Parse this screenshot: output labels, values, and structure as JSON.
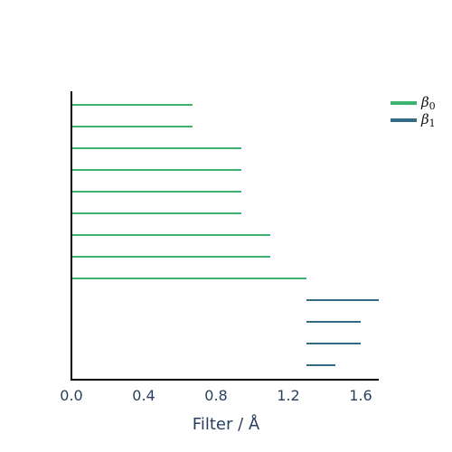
{
  "chart_data": {
    "type": "barcode",
    "xlabel": "Filter / Å",
    "xlim": [
      0.0,
      1.7
    ],
    "xticks": [
      "0.0",
      "0.4",
      "0.8",
      "1.2",
      "1.6"
    ],
    "xtick_values": [
      0.0,
      0.4,
      0.8,
      1.2,
      1.6
    ],
    "legend_position": "top-right",
    "series": [
      {
        "name": "β",
        "subscript": "0",
        "color": "#3cb371",
        "bars": [
          {
            "birth": 0.0,
            "death": 0.67
          },
          {
            "birth": 0.0,
            "death": 0.67
          },
          {
            "birth": 0.0,
            "death": 0.94
          },
          {
            "birth": 0.0,
            "death": 0.94
          },
          {
            "birth": 0.0,
            "death": 0.94
          },
          {
            "birth": 0.0,
            "death": 0.94
          },
          {
            "birth": 0.0,
            "death": 1.1
          },
          {
            "birth": 0.0,
            "death": 1.1
          },
          {
            "birth": 0.0,
            "death": 1.3
          }
        ]
      },
      {
        "name": "β",
        "subscript": "1",
        "color": "#336b87",
        "bars": [
          {
            "birth": 1.3,
            "death": 1.7
          },
          {
            "birth": 1.3,
            "death": 1.6
          },
          {
            "birth": 1.3,
            "death": 1.6
          },
          {
            "birth": 1.3,
            "death": 1.46
          }
        ]
      }
    ]
  }
}
